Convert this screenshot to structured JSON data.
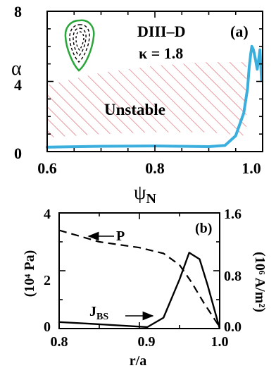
{
  "chart_data": [
    {
      "panel": "(a)",
      "type": "line",
      "device": "DIII–D",
      "kappa": "κ = 1.8",
      "ylabel": "α",
      "xlabel": "ψ",
      "xlabel_sub": "N",
      "xlim": [
        0.6,
        1.0
      ],
      "ylim": [
        0,
        8
      ],
      "xticks": [
        "0.6",
        "0.8",
        "1.0"
      ],
      "yticks": [
        "0",
        "4",
        "8"
      ],
      "unstable_label": "Unstable",
      "colors": {
        "curve": "#3aaedc",
        "hatch": "#e0707a",
        "inset": "#2aa63a"
      },
      "unstable_region": {
        "top": [
          [
            0.6,
            3.8
          ],
          [
            0.7,
            4.5
          ],
          [
            0.8,
            4.9
          ],
          [
            0.9,
            5.1
          ],
          [
            0.97,
            5.1
          ]
        ],
        "bottom": [
          [
            0.6,
            0.8
          ],
          [
            0.7,
            1.0
          ],
          [
            0.8,
            1.1
          ],
          [
            0.9,
            1.1
          ],
          [
            0.97,
            0.9
          ]
        ]
      },
      "series": [
        {
          "x": [
            0.6,
            0.7,
            0.8,
            0.85,
            0.9,
            0.93,
            0.95,
            0.965,
            0.972,
            0.975,
            0.978,
            0.98,
            0.983,
            0.987,
            0.99,
            0.993,
            0.995,
            0.998
          ],
          "y": [
            0.25,
            0.3,
            0.32,
            0.3,
            0.28,
            0.35,
            0.9,
            2.2,
            3.6,
            4.8,
            5.6,
            6.0,
            5.8,
            5.2,
            4.7,
            5.3,
            5.8,
            4.1
          ]
        }
      ]
    },
    {
      "panel": "(b)",
      "type": "line",
      "xlabel": "r/a",
      "ylabel_left": "(10⁴ Pa)",
      "ylabel_right": "(10⁶ A/m²)",
      "xlim": [
        0.8,
        1.0
      ],
      "ylim_left": [
        0,
        4
      ],
      "ylim_right": [
        0,
        1.6
      ],
      "xticks": [
        "0.8",
        "0.9",
        "1.0"
      ],
      "yticks_left": [
        "0",
        "2",
        "4"
      ],
      "yticks_right": [
        "0.0",
        "0.8",
        "1.6"
      ],
      "series": [
        {
          "name": "P",
          "style": "dashed",
          "x": [
            0.8,
            0.85,
            0.9,
            0.93,
            0.95,
            0.965,
            0.98,
            1.0
          ],
          "y": [
            3.4,
            3.0,
            2.8,
            2.6,
            2.2,
            1.6,
            0.9,
            0.05
          ]
        },
        {
          "name": "J",
          "name_sub": "BS",
          "style": "solid",
          "axis": "right",
          "x": [
            0.8,
            0.85,
            0.91,
            0.93,
            0.95,
            0.962,
            0.975,
            0.985,
            1.0
          ],
          "y": [
            0.09,
            0.06,
            0.02,
            0.15,
            0.68,
            1.05,
            0.96,
            0.6,
            0.0
          ]
        }
      ]
    }
  ]
}
